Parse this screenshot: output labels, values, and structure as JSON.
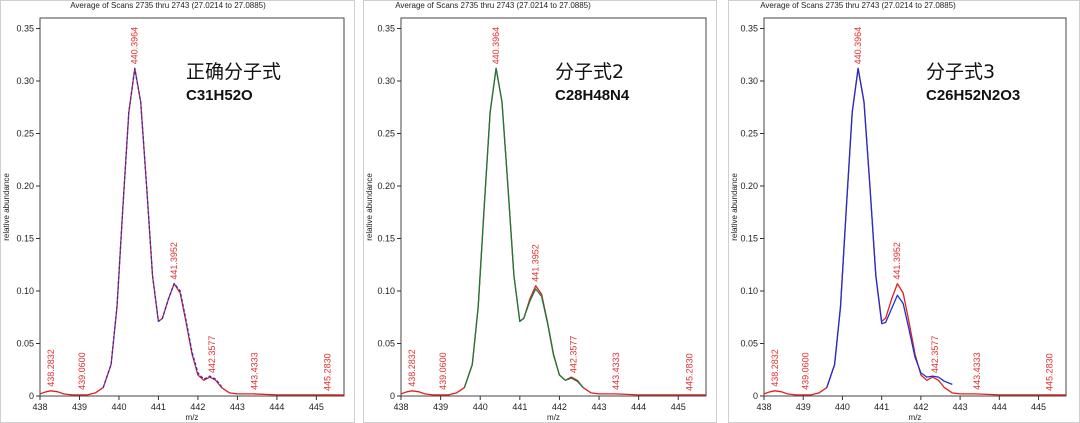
{
  "chart_data": [
    {
      "type": "line",
      "title": "Average of Scans 2735 thru 2743 (27.0214 to 27.0885)",
      "xlabel": "m/z",
      "ylabel": "relative abundance",
      "xlim": [
        438,
        445.7
      ],
      "ylim": [
        0,
        0.36
      ],
      "x_ticks": [
        "438",
        "439",
        "440",
        "441",
        "442",
        "443",
        "444",
        "445"
      ],
      "y_ticks": [
        "0",
        "0.05",
        "0.10",
        "0.15",
        "0.20",
        "0.25",
        "0.30",
        "0.35"
      ],
      "grid": false,
      "formula_name": "正确分子式",
      "formula": "C31H52O",
      "peak_labels": [
        {
          "x": 438.2832,
          "y": 0.005,
          "text": "438.2832"
        },
        {
          "x": 439.06,
          "y": 0.002,
          "text": "439.0600"
        },
        {
          "x": 440.3964,
          "y": 0.312,
          "text": "440.3964"
        },
        {
          "x": 441.3952,
          "y": 0.107,
          "text": "441.3952"
        },
        {
          "x": 442.3577,
          "y": 0.018,
          "text": "442.3577"
        },
        {
          "x": 443.4333,
          "y": 0.002,
          "text": "443.4333"
        },
        {
          "x": 445.283,
          "y": 0.001,
          "text": "445.2830"
        }
      ],
      "series": [
        {
          "color": "#e02020",
          "dashed": false,
          "x": [
            438.0,
            438.15,
            438.28,
            438.45,
            438.6,
            438.8,
            439.0,
            439.2,
            439.4,
            439.6,
            439.8,
            439.95,
            440.1,
            440.25,
            440.4,
            440.55,
            440.7,
            440.85,
            441.0,
            441.1,
            441.25,
            441.4,
            441.55,
            441.7,
            441.85,
            442.0,
            442.15,
            442.3,
            442.45,
            442.6,
            442.8,
            443.0,
            443.4,
            444.0,
            444.6,
            445.2,
            445.7
          ],
          "y": [
            0.002,
            0.004,
            0.005,
            0.004,
            0.002,
            0.001,
            0.001,
            0.001,
            0.003,
            0.008,
            0.03,
            0.085,
            0.18,
            0.27,
            0.312,
            0.28,
            0.2,
            0.115,
            0.071,
            0.074,
            0.092,
            0.107,
            0.098,
            0.07,
            0.04,
            0.02,
            0.015,
            0.018,
            0.015,
            0.008,
            0.003,
            0.002,
            0.002,
            0.001,
            0.001,
            0.001,
            0.001
          ]
        },
        {
          "color": "#2030d0",
          "dashed": true,
          "x": [
            439.6,
            439.8,
            439.95,
            440.1,
            440.25,
            440.4,
            440.55,
            440.7,
            440.85,
            441.0,
            441.1,
            441.25,
            441.4,
            441.55,
            441.7,
            441.85,
            442.0,
            442.15,
            442.3,
            442.45,
            442.6
          ],
          "y": [
            0.008,
            0.03,
            0.085,
            0.18,
            0.27,
            0.312,
            0.28,
            0.2,
            0.115,
            0.071,
            0.074,
            0.092,
            0.107,
            0.1,
            0.072,
            0.042,
            0.022,
            0.016,
            0.019,
            0.016,
            0.009
          ]
        }
      ]
    },
    {
      "type": "line",
      "title": "Average of Scans 2735 thru 2743 (27.0214 to 27.0885)",
      "xlabel": "m/z",
      "ylabel": "relative abundance",
      "xlim": [
        438,
        445.7
      ],
      "ylim": [
        0,
        0.36
      ],
      "x_ticks": [
        "438",
        "439",
        "440",
        "441",
        "442",
        "443",
        "444",
        "445"
      ],
      "y_ticks": [
        "0",
        "0.05",
        "0.10",
        "0.15",
        "0.20",
        "0.25",
        "0.30",
        "0.35"
      ],
      "grid": false,
      "formula_name": "分子式2",
      "formula": "C28H48N4",
      "peak_labels": [
        {
          "x": 438.2832,
          "y": 0.005,
          "text": "438.2832"
        },
        {
          "x": 439.06,
          "y": 0.002,
          "text": "439.0600"
        },
        {
          "x": 440.3964,
          "y": 0.312,
          "text": "440.3964"
        },
        {
          "x": 441.3952,
          "y": 0.105,
          "text": "441.3952"
        },
        {
          "x": 442.3577,
          "y": 0.018,
          "text": "442.3577"
        },
        {
          "x": 443.4333,
          "y": 0.002,
          "text": "443.4333"
        },
        {
          "x": 445.283,
          "y": 0.001,
          "text": "445.2830"
        }
      ],
      "series": [
        {
          "color": "#e02020",
          "dashed": false,
          "x": [
            438.0,
            438.15,
            438.28,
            438.45,
            438.6,
            438.8,
            439.0,
            439.2,
            439.4,
            439.6,
            439.8,
            439.95,
            440.1,
            440.25,
            440.4,
            440.55,
            440.7,
            440.85,
            441.0,
            441.1,
            441.25,
            441.4,
            441.55,
            441.7,
            441.85,
            442.0,
            442.15,
            442.3,
            442.45,
            442.6,
            442.8,
            443.0,
            443.4,
            444.0,
            444.6,
            445.2,
            445.7
          ],
          "y": [
            0.002,
            0.004,
            0.005,
            0.004,
            0.002,
            0.001,
            0.001,
            0.001,
            0.003,
            0.008,
            0.03,
            0.085,
            0.18,
            0.27,
            0.312,
            0.28,
            0.2,
            0.115,
            0.071,
            0.074,
            0.092,
            0.105,
            0.097,
            0.07,
            0.04,
            0.02,
            0.015,
            0.018,
            0.015,
            0.008,
            0.003,
            0.002,
            0.002,
            0.001,
            0.001,
            0.001,
            0.001
          ]
        },
        {
          "color": "#1a7a3a",
          "dashed": false,
          "x": [
            439.6,
            439.8,
            439.95,
            440.1,
            440.25,
            440.4,
            440.55,
            440.7,
            440.85,
            441.0,
            441.1,
            441.25,
            441.4,
            441.55,
            441.7,
            441.85,
            442.0,
            442.15,
            442.3,
            442.45,
            442.6
          ],
          "y": [
            0.008,
            0.03,
            0.085,
            0.18,
            0.27,
            0.312,
            0.28,
            0.2,
            0.115,
            0.071,
            0.074,
            0.09,
            0.102,
            0.095,
            0.069,
            0.039,
            0.02,
            0.015,
            0.017,
            0.014,
            0.008
          ]
        }
      ]
    },
    {
      "type": "line",
      "title": "Average of Scans 2735 thru 2743 (27.0214 to 27.0885)",
      "xlabel": "m/z",
      "ylabel": "relative abundance",
      "xlim": [
        438,
        445.7
      ],
      "ylim": [
        0,
        0.36
      ],
      "x_ticks": [
        "438",
        "439",
        "440",
        "441",
        "442",
        "443",
        "444",
        "445"
      ],
      "y_ticks": [
        "0",
        "0.05",
        "0.10",
        "0.15",
        "0.20",
        "0.25",
        "0.30",
        "0.35"
      ],
      "grid": false,
      "formula_name": "分子式3",
      "formula": "C26H52N2O3",
      "peak_labels": [
        {
          "x": 438.2832,
          "y": 0.005,
          "text": "438.2832"
        },
        {
          "x": 439.06,
          "y": 0.002,
          "text": "439.0600"
        },
        {
          "x": 440.3964,
          "y": 0.312,
          "text": "440.3964"
        },
        {
          "x": 441.3952,
          "y": 0.107,
          "text": "441.3952"
        },
        {
          "x": 442.3577,
          "y": 0.018,
          "text": "442.3577"
        },
        {
          "x": 443.4333,
          "y": 0.002,
          "text": "443.4333"
        },
        {
          "x": 445.283,
          "y": 0.001,
          "text": "445.2830"
        }
      ],
      "series": [
        {
          "color": "#e02020",
          "dashed": false,
          "x": [
            438.0,
            438.15,
            438.28,
            438.45,
            438.6,
            438.8,
            439.0,
            439.2,
            439.4,
            439.6,
            439.8,
            439.95,
            440.1,
            440.25,
            440.4,
            440.55,
            440.7,
            440.85,
            441.0,
            441.1,
            441.25,
            441.4,
            441.55,
            441.7,
            441.85,
            442.0,
            442.15,
            442.3,
            442.45,
            442.6,
            442.8,
            443.0,
            443.4,
            444.0,
            444.6,
            445.2,
            445.7
          ],
          "y": [
            0.002,
            0.004,
            0.005,
            0.004,
            0.002,
            0.001,
            0.001,
            0.001,
            0.003,
            0.008,
            0.03,
            0.085,
            0.18,
            0.27,
            0.312,
            0.28,
            0.2,
            0.115,
            0.071,
            0.074,
            0.092,
            0.107,
            0.098,
            0.07,
            0.04,
            0.02,
            0.015,
            0.018,
            0.015,
            0.008,
            0.003,
            0.002,
            0.002,
            0.001,
            0.001,
            0.001,
            0.001
          ]
        },
        {
          "color": "#2030d0",
          "dashed": false,
          "x": [
            439.6,
            439.8,
            439.95,
            440.1,
            440.25,
            440.4,
            440.55,
            440.7,
            440.85,
            441.0,
            441.1,
            441.25,
            441.4,
            441.55,
            441.7,
            441.85,
            442.0,
            442.15,
            442.3,
            442.45,
            442.6,
            442.8
          ],
          "y": [
            0.008,
            0.03,
            0.085,
            0.18,
            0.27,
            0.312,
            0.28,
            0.2,
            0.115,
            0.069,
            0.07,
            0.083,
            0.096,
            0.088,
            0.063,
            0.037,
            0.022,
            0.018,
            0.019,
            0.018,
            0.014,
            0.011
          ]
        }
      ]
    }
  ]
}
